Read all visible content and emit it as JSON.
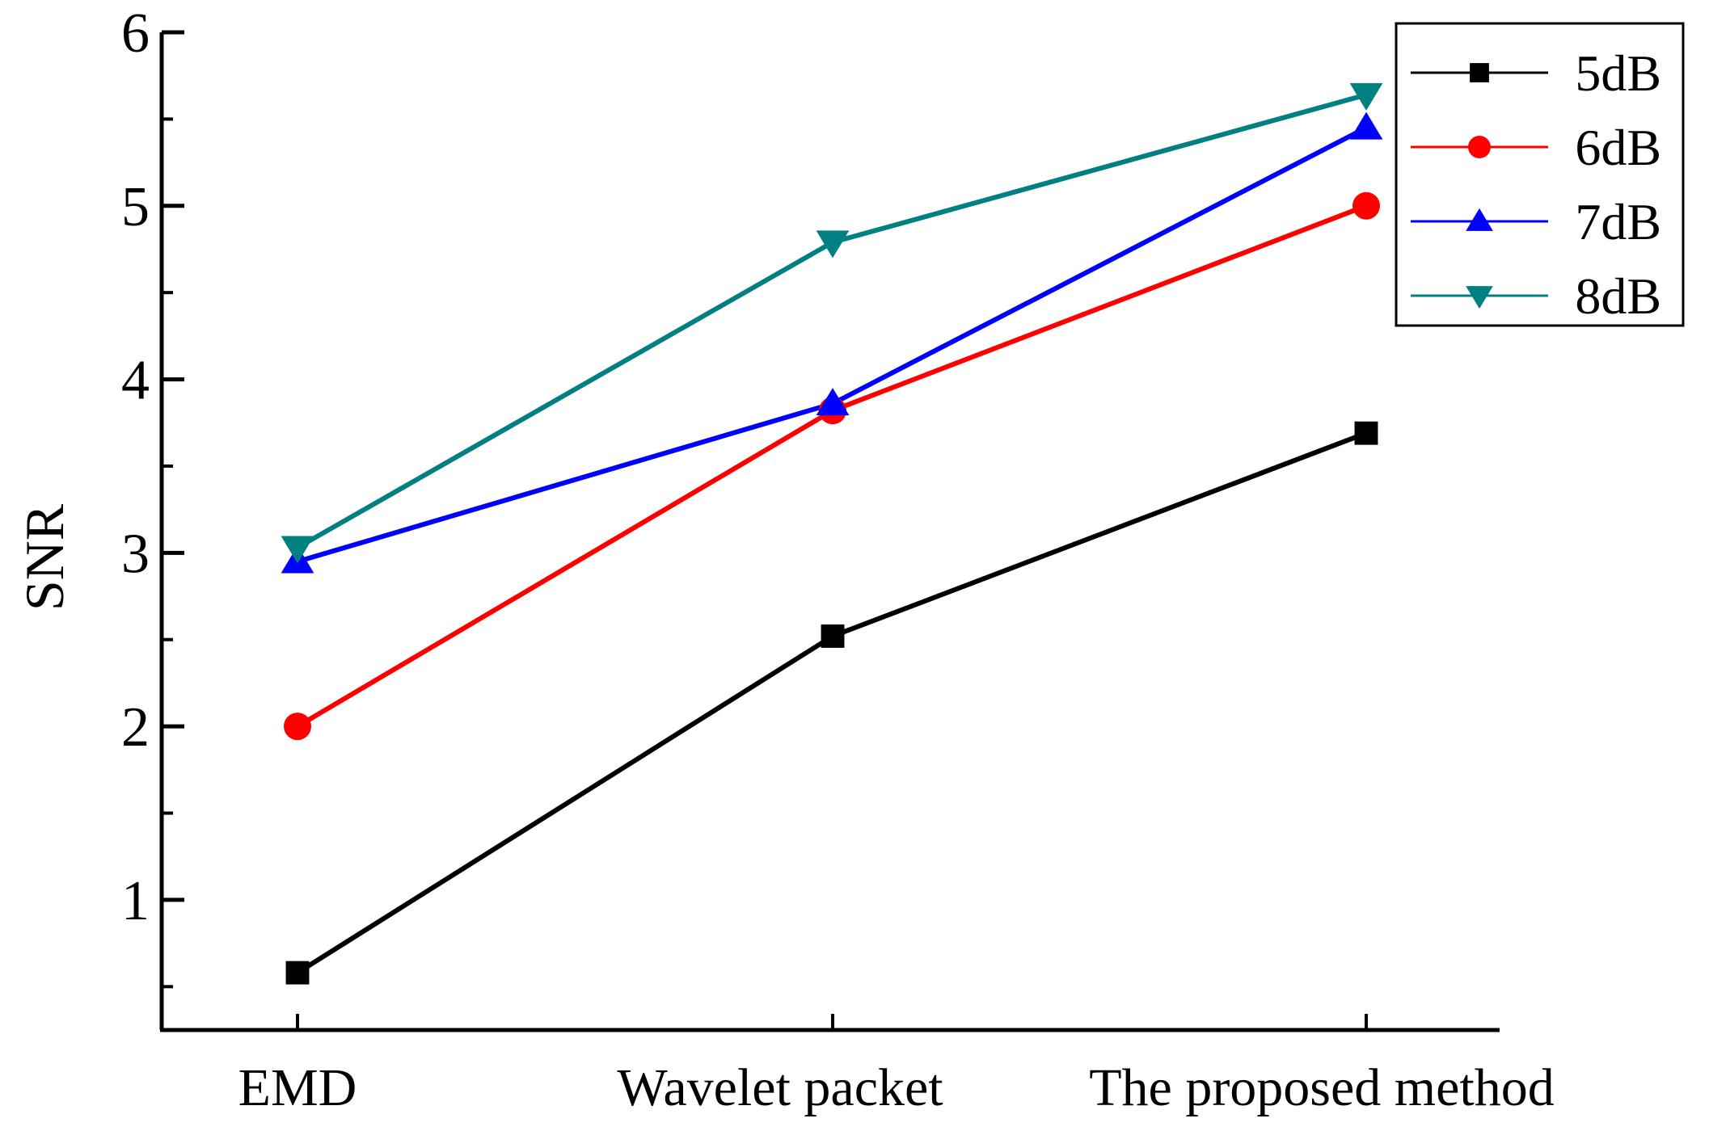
{
  "chart_data": {
    "type": "line",
    "title": "",
    "xlabel": "",
    "ylabel": "SNR",
    "categories": [
      "EMD",
      "Wavelet packet",
      "The proposed method"
    ],
    "ylim": [
      0.25,
      6
    ],
    "yticks": [
      1,
      2,
      3,
      4,
      5,
      6
    ],
    "legend_position": "top-right",
    "series": [
      {
        "name": "5dB",
        "color": "#000000",
        "marker": "square",
        "values": [
          0.58,
          2.52,
          3.69
        ]
      },
      {
        "name": "6dB",
        "color": "#ff0000",
        "marker": "circle",
        "values": [
          2.0,
          3.82,
          5.0
        ]
      },
      {
        "name": "7dB",
        "color": "#0000ff",
        "marker": "triangle-up",
        "values": [
          2.95,
          3.86,
          5.45
        ]
      },
      {
        "name": "8dB",
        "color": "#008080",
        "marker": "triangle-down",
        "values": [
          3.03,
          4.79,
          5.64
        ]
      }
    ]
  }
}
